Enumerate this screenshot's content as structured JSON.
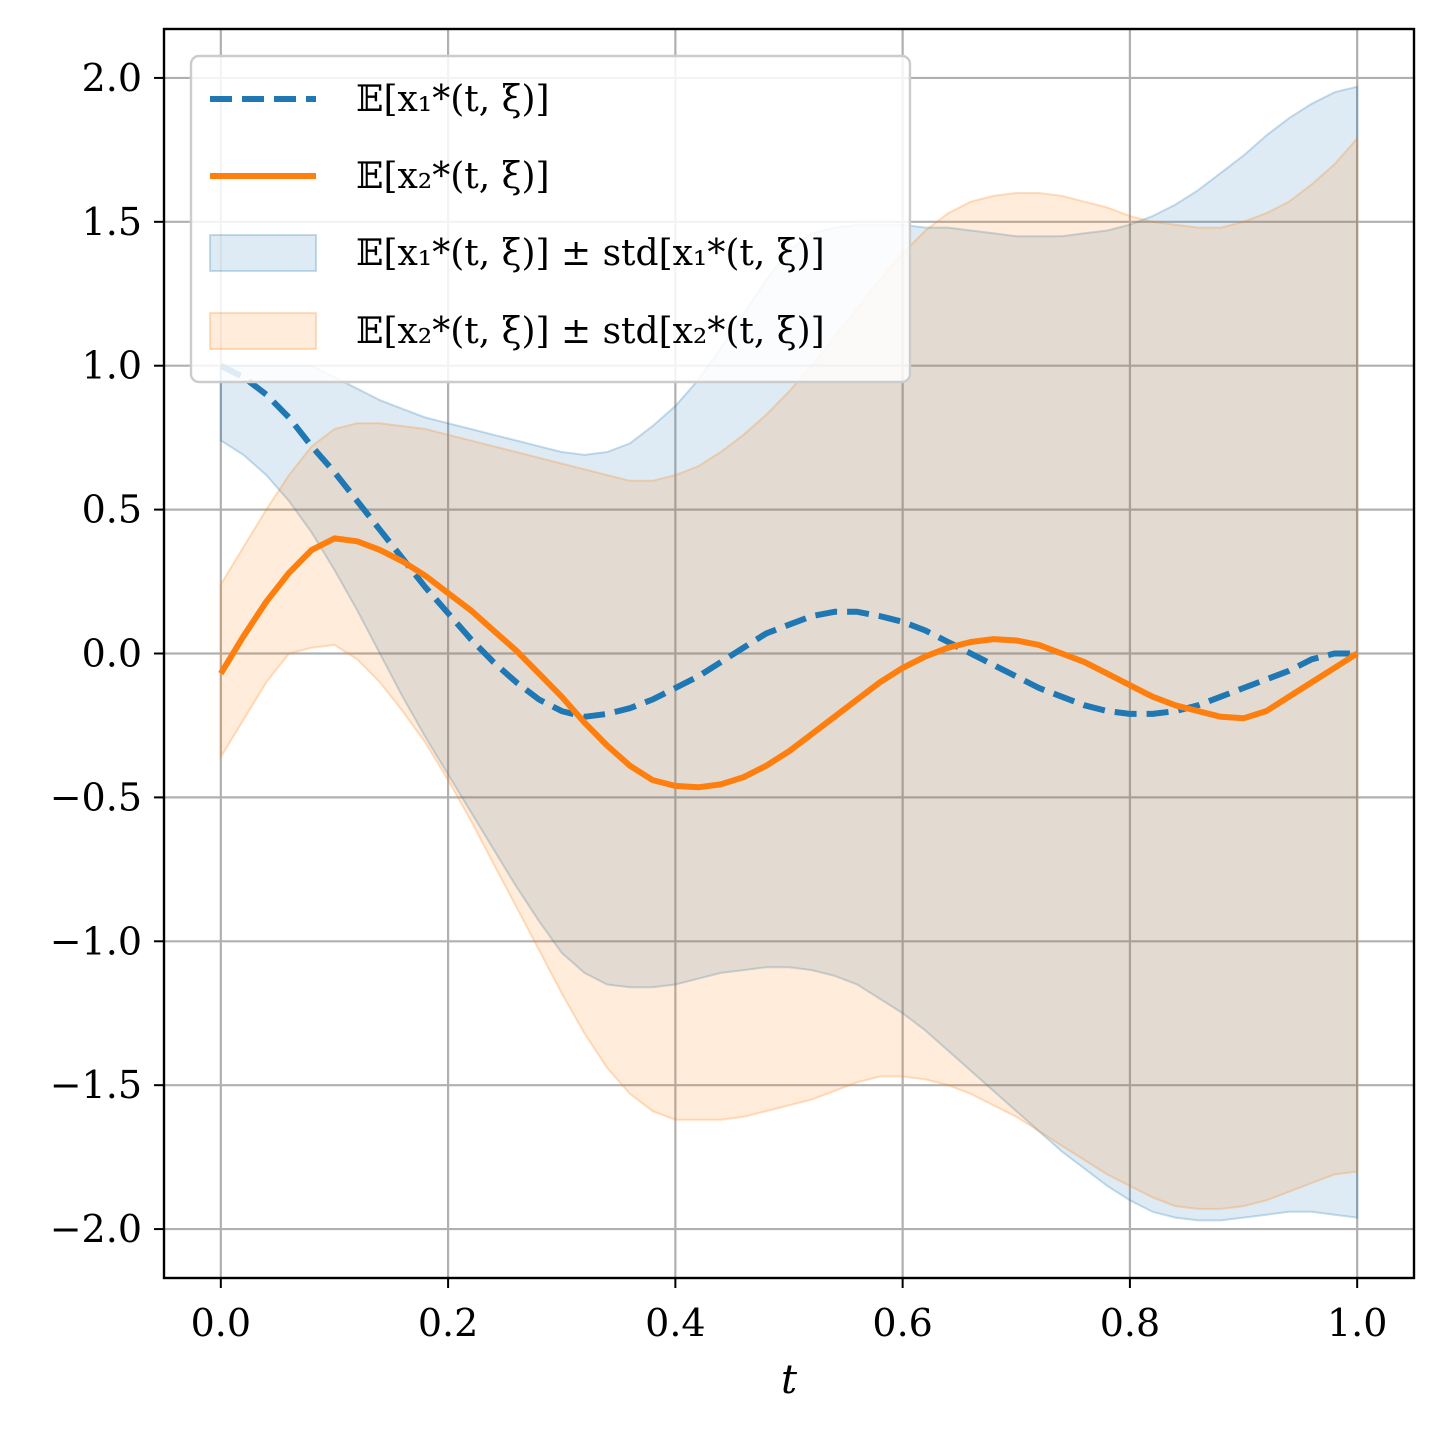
{
  "chart_data": {
    "type": "line",
    "xlabel": "t",
    "ylabel": "",
    "xlim": [
      -0.05,
      1.05
    ],
    "ylim": [
      -2.17,
      2.17
    ],
    "xticks": [
      0.0,
      0.2,
      0.4,
      0.6,
      0.8,
      1.0
    ],
    "xtick_labels": [
      "0.0",
      "0.2",
      "0.4",
      "0.6",
      "0.8",
      "1.0"
    ],
    "yticks": [
      2.0,
      1.5,
      1.0,
      0.5,
      0.0,
      -0.5,
      -1.0,
      -1.5,
      -2.0
    ],
    "ytick_labels": [
      "2.0",
      "1.5",
      "1.0",
      "0.5",
      "0.0",
      "−0.5",
      "−1.0",
      "−1.5",
      "−2.0"
    ],
    "grid": true,
    "legend_position": "top-left",
    "colors": {
      "series1": "#1f77b4",
      "series2": "#ff7f0e"
    },
    "x": [
      0.0,
      0.02,
      0.04,
      0.06,
      0.08,
      0.1,
      0.12,
      0.14,
      0.16,
      0.18,
      0.2,
      0.22,
      0.24,
      0.26,
      0.28,
      0.3,
      0.32,
      0.34,
      0.36,
      0.38,
      0.4,
      0.42,
      0.44,
      0.46,
      0.48,
      0.5,
      0.52,
      0.54,
      0.56,
      0.58,
      0.6,
      0.62,
      0.64,
      0.66,
      0.68,
      0.7,
      0.72,
      0.74,
      0.76,
      0.78,
      0.8,
      0.82,
      0.84,
      0.86,
      0.88,
      0.9,
      0.92,
      0.94,
      0.96,
      0.98,
      1.0
    ],
    "series": [
      {
        "name": "E[x1*(t,ξ)]",
        "style": "dashed",
        "values": [
          1.0,
          0.96,
          0.9,
          0.82,
          0.72,
          0.63,
          0.53,
          0.43,
          0.33,
          0.23,
          0.14,
          0.05,
          -0.03,
          -0.1,
          -0.16,
          -0.2,
          -0.22,
          -0.21,
          -0.19,
          -0.16,
          -0.12,
          -0.08,
          -0.03,
          0.02,
          0.07,
          0.1,
          0.13,
          0.145,
          0.145,
          0.13,
          0.11,
          0.08,
          0.04,
          0.0,
          -0.04,
          -0.08,
          -0.12,
          -0.15,
          -0.18,
          -0.2,
          -0.21,
          -0.21,
          -0.2,
          -0.18,
          -0.15,
          -0.12,
          -0.09,
          -0.06,
          -0.02,
          0.0,
          0.0
        ],
        "band_upper": [
          1.0,
          1.0,
          1.0,
          1.0,
          1.0,
          0.96,
          0.92,
          0.88,
          0.85,
          0.82,
          0.8,
          0.78,
          0.76,
          0.74,
          0.72,
          0.7,
          0.69,
          0.7,
          0.73,
          0.79,
          0.86,
          0.95,
          1.06,
          1.18,
          1.3,
          1.4,
          1.46,
          1.48,
          1.49,
          1.49,
          1.49,
          1.48,
          1.48,
          1.47,
          1.46,
          1.45,
          1.45,
          1.45,
          1.46,
          1.47,
          1.49,
          1.52,
          1.56,
          1.61,
          1.67,
          1.73,
          1.8,
          1.86,
          1.91,
          1.95,
          1.97
        ],
        "band_lower": [
          0.74,
          0.69,
          0.62,
          0.53,
          0.42,
          0.29,
          0.15,
          0.0,
          -0.15,
          -0.29,
          -0.42,
          -0.55,
          -0.68,
          -0.81,
          -0.93,
          -1.04,
          -1.11,
          -1.15,
          -1.16,
          -1.16,
          -1.15,
          -1.13,
          -1.11,
          -1.1,
          -1.09,
          -1.09,
          -1.1,
          -1.12,
          -1.15,
          -1.2,
          -1.25,
          -1.31,
          -1.38,
          -1.45,
          -1.52,
          -1.59,
          -1.66,
          -1.73,
          -1.79,
          -1.85,
          -1.9,
          -1.94,
          -1.96,
          -1.97,
          -1.97,
          -1.96,
          -1.95,
          -1.94,
          -1.94,
          -1.95,
          -1.96
        ]
      },
      {
        "name": "E[x2*(t,ξ)]",
        "style": "solid",
        "values": [
          -0.07,
          0.06,
          0.18,
          0.28,
          0.36,
          0.4,
          0.39,
          0.36,
          0.32,
          0.27,
          0.21,
          0.15,
          0.08,
          0.01,
          -0.07,
          -0.15,
          -0.24,
          -0.32,
          -0.39,
          -0.44,
          -0.46,
          -0.465,
          -0.455,
          -0.43,
          -0.39,
          -0.34,
          -0.28,
          -0.22,
          -0.16,
          -0.1,
          -0.05,
          -0.01,
          0.02,
          0.04,
          0.05,
          0.045,
          0.03,
          0.0,
          -0.03,
          -0.07,
          -0.11,
          -0.15,
          -0.18,
          -0.2,
          -0.22,
          -0.225,
          -0.2,
          -0.15,
          -0.1,
          -0.05,
          0.0
        ],
        "band_upper": [
          0.24,
          0.37,
          0.5,
          0.62,
          0.72,
          0.78,
          0.8,
          0.8,
          0.79,
          0.78,
          0.76,
          0.74,
          0.72,
          0.7,
          0.68,
          0.66,
          0.64,
          0.62,
          0.6,
          0.6,
          0.62,
          0.65,
          0.7,
          0.76,
          0.83,
          0.91,
          1.0,
          1.1,
          1.2,
          1.3,
          1.39,
          1.47,
          1.53,
          1.57,
          1.59,
          1.6,
          1.6,
          1.59,
          1.57,
          1.55,
          1.52,
          1.5,
          1.49,
          1.48,
          1.48,
          1.5,
          1.53,
          1.57,
          1.63,
          1.7,
          1.79
        ],
        "band_lower": [
          -0.36,
          -0.23,
          -0.1,
          0.0,
          0.02,
          0.03,
          -0.02,
          -0.1,
          -0.2,
          -0.31,
          -0.44,
          -0.58,
          -0.73,
          -0.88,
          -1.03,
          -1.18,
          -1.32,
          -1.44,
          -1.53,
          -1.59,
          -1.62,
          -1.62,
          -1.62,
          -1.61,
          -1.59,
          -1.57,
          -1.55,
          -1.52,
          -1.49,
          -1.47,
          -1.47,
          -1.48,
          -1.5,
          -1.53,
          -1.57,
          -1.61,
          -1.66,
          -1.71,
          -1.76,
          -1.81,
          -1.85,
          -1.89,
          -1.92,
          -1.93,
          -1.93,
          -1.92,
          -1.9,
          -1.87,
          -1.84,
          -1.81,
          -1.8
        ]
      }
    ]
  },
  "legend": {
    "entries": [
      {
        "kind": "dashed-line",
        "color": "#1f77b4",
        "main": "𝔼[x₁*(t, ξ)]"
      },
      {
        "kind": "solid-line",
        "color": "#ff7f0e",
        "main": "𝔼[x₂*(t, ξ)]"
      },
      {
        "kind": "band",
        "color": "#1f77b4",
        "main": "𝔼[x₁*(t, ξ)] ± std[x₁*(t, ξ)]"
      },
      {
        "kind": "band",
        "color": "#ff7f0e",
        "main": "𝔼[x₂*(t, ξ)] ± std[x₂*(t, ξ)]"
      }
    ]
  }
}
